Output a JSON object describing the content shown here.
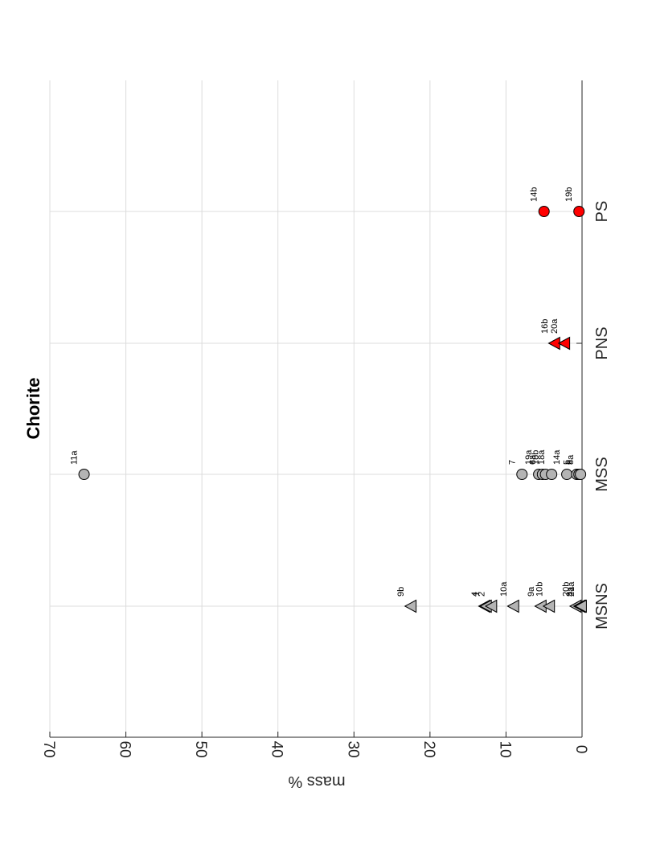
{
  "chart_data": {
    "type": "scatter",
    "title": "Chorite",
    "ylabel": "mass %",
    "ylim": [
      0,
      70
    ],
    "yticks": [
      0,
      10,
      20,
      30,
      40,
      50,
      60,
      70
    ],
    "categories": [
      "MSNS",
      "MSS",
      "PNS",
      "PS"
    ],
    "grid": true,
    "colors": {
      "grey": "#b4b4b4",
      "red": "#ff0000",
      "edge": "#000000"
    },
    "series": [
      {
        "category": "MSNS",
        "marker": "triangle",
        "color": "#b4b4b4",
        "points": [
          {
            "label": "9b",
            "value": 22.5
          },
          {
            "label": "4",
            "value": 12.8
          },
          {
            "label": "1",
            "value": 12.6
          },
          {
            "label": "2",
            "value": 11.9
          },
          {
            "label": "10a",
            "value": 9.0
          },
          {
            "label": "9a",
            "value": 5.4
          },
          {
            "label": "10b",
            "value": 4.3
          },
          {
            "label": "20b",
            "value": 0.8
          },
          {
            "label": "3",
            "value": 0.3
          },
          {
            "label": "4a",
            "value": 0.2
          },
          {
            "label": "21a",
            "value": 0.1
          }
        ]
      },
      {
        "category": "MSS",
        "marker": "circle",
        "color": "#b4b4b4",
        "points": [
          {
            "label": "11a",
            "value": 65.5
          },
          {
            "label": "7",
            "value": 7.9
          },
          {
            "label": "19a",
            "value": 5.7
          },
          {
            "label": "6a",
            "value": 5.2
          },
          {
            "label": "18b",
            "value": 4.8
          },
          {
            "label": "18a",
            "value": 4.0
          },
          {
            "label": "14a",
            "value": 2.0
          },
          {
            "label": "5",
            "value": 0.7
          },
          {
            "label": "6",
            "value": 0.4
          },
          {
            "label": "8a",
            "value": 0.2
          }
        ]
      },
      {
        "category": "PNS",
        "marker": "triangle",
        "color": "#ff0000",
        "points": [
          {
            "label": "16b",
            "value": 3.6
          },
          {
            "label": "20a",
            "value": 2.3
          }
        ]
      },
      {
        "category": "PS",
        "marker": "circle",
        "color": "#ff0000",
        "points": [
          {
            "label": "14b",
            "value": 5.0
          },
          {
            "label": "19b",
            "value": 0.4
          }
        ]
      }
    ]
  }
}
